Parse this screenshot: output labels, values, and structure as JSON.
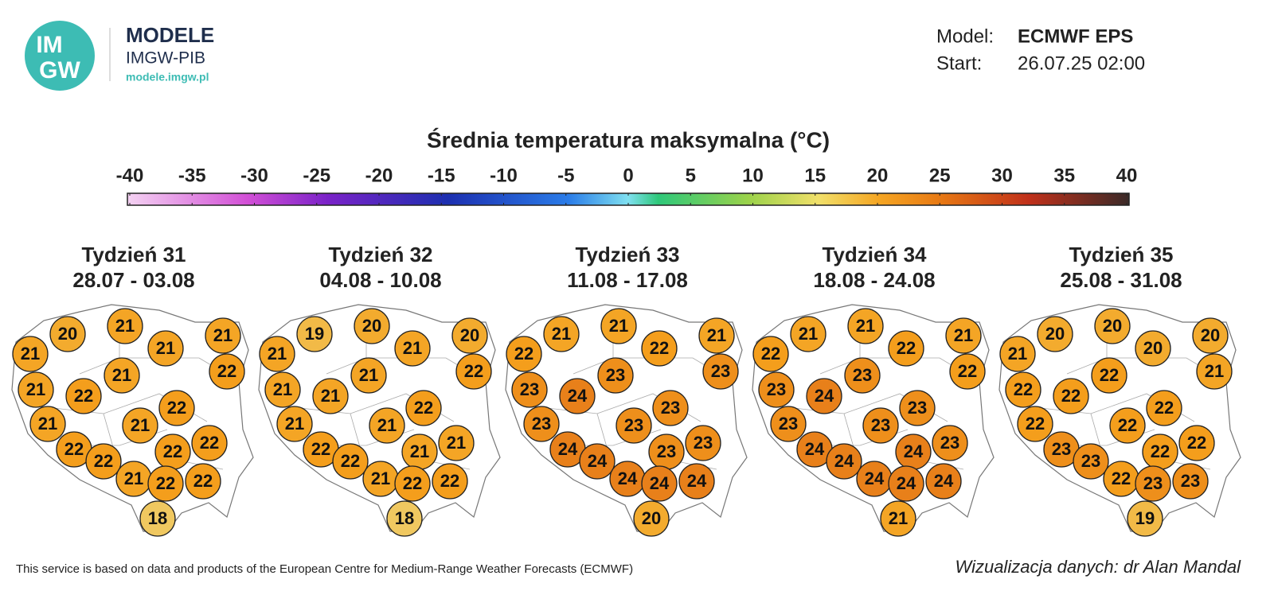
{
  "header": {
    "logo_top": "IM",
    "logo_bottom": "GW",
    "brand": "MODELE",
    "brand_sub": "IMGW-PIB",
    "url": "modele.imgw.pl",
    "model_label": "Model:",
    "model": "ECMWF EPS",
    "start_label": "Start:",
    "start": "26.07.25 02:00"
  },
  "title": "Średnia temperatura maksymalna (°C)",
  "colorbar": {
    "ticks": [
      -40,
      -35,
      -30,
      -25,
      -20,
      -15,
      -10,
      -5,
      0,
      5,
      10,
      15,
      20,
      25,
      30,
      35,
      40
    ]
  },
  "maps": [
    {
      "week": "Tydzień 31",
      "dates": "28.07 - 03.08",
      "values": [
        21,
        20,
        21,
        21,
        21,
        22,
        21,
        22,
        21,
        22,
        21,
        21,
        22,
        22,
        22,
        22,
        21,
        22,
        22,
        18
      ]
    },
    {
      "week": "Tydzień 32",
      "dates": "04.08 - 10.08",
      "values": [
        21,
        19,
        20,
        20,
        21,
        22,
        21,
        21,
        21,
        22,
        21,
        21,
        22,
        21,
        21,
        22,
        21,
        22,
        22,
        18
      ]
    },
    {
      "week": "Tydzień 33",
      "dates": "11.08 - 17.08",
      "values": [
        22,
        21,
        21,
        21,
        22,
        23,
        23,
        24,
        23,
        23,
        23,
        23,
        24,
        23,
        23,
        24,
        24,
        24,
        24,
        20
      ]
    },
    {
      "week": "Tydzień 34",
      "dates": "18.08 - 24.08",
      "values": [
        22,
        21,
        21,
        21,
        22,
        22,
        23,
        24,
        23,
        23,
        23,
        23,
        24,
        24,
        23,
        24,
        24,
        24,
        24,
        21
      ]
    },
    {
      "week": "Tydzień 35",
      "dates": "25.08 - 31.08",
      "values": [
        21,
        20,
        20,
        20,
        20,
        21,
        22,
        22,
        22,
        22,
        22,
        22,
        23,
        22,
        22,
        23,
        22,
        23,
        23,
        19
      ]
    }
  ],
  "footer": {
    "source": "This service is based on data and products of the European Centre for Medium-Range Weather Forecasts (ECMWF)",
    "credit": "Wizualizacja danych: dr Alan Mandal"
  }
}
